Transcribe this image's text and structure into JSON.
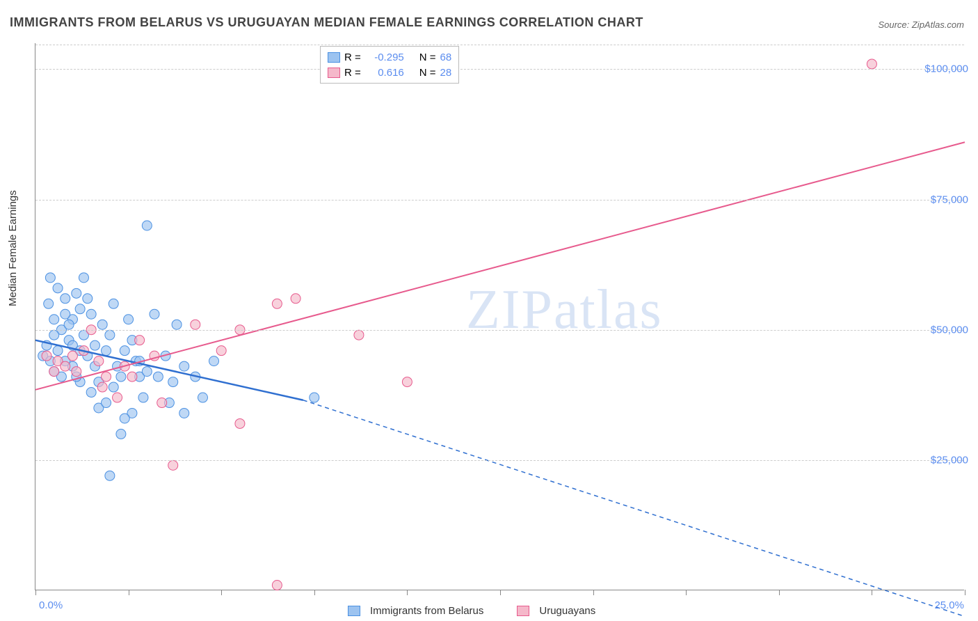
{
  "title": "IMMIGRANTS FROM BELARUS VS URUGUAYAN MEDIAN FEMALE EARNINGS CORRELATION CHART",
  "source_prefix": "Source: ",
  "source": "ZipAtlas.com",
  "y_axis_label": "Median Female Earnings",
  "watermark_a": "ZIP",
  "watermark_b": "atlas",
  "chart": {
    "type": "scatter-with-regression",
    "background_color": "#ffffff",
    "grid_color": "#cccccc",
    "axis_color": "#888888",
    "text_color": "#333333",
    "value_color": "#5b8def",
    "x": {
      "min": 0,
      "max": 25,
      "label_min": "0.0%",
      "label_max": "25.0%",
      "ticks": [
        0,
        2.5,
        5,
        7.5,
        10,
        12.5,
        15,
        17.5,
        20,
        22.5,
        25
      ]
    },
    "y": {
      "min": 0,
      "max": 105000,
      "ticks": [
        25000,
        50000,
        75000,
        100000
      ],
      "tick_labels": [
        "$25,000",
        "$50,000",
        "$75,000",
        "$100,000"
      ]
    },
    "series": [
      {
        "id": "belarus",
        "name": "Immigrants from Belarus",
        "color_fill": "#9cc3f0",
        "color_stroke": "#4a90e2",
        "line_color": "#2f6fd0",
        "r_label": "R =",
        "r_value": "-0.295",
        "n_label": "N =",
        "n_value": "68",
        "marker_radius": 7,
        "marker_opacity": 0.65,
        "regression": {
          "x1": 0,
          "y1": 48000,
          "x2": 7.2,
          "y2": 36500,
          "dash_x2": 25,
          "dash_y2": -5000
        },
        "points": [
          [
            0.2,
            45000
          ],
          [
            0.3,
            47000
          ],
          [
            0.4,
            44000
          ],
          [
            0.35,
            55000
          ],
          [
            0.5,
            52000
          ],
          [
            0.6,
            58000
          ],
          [
            0.5,
            42000
          ],
          [
            0.7,
            50000
          ],
          [
            0.8,
            56000
          ],
          [
            0.9,
            48000
          ],
          [
            1.0,
            43000
          ],
          [
            1.0,
            52000
          ],
          [
            1.1,
            57000
          ],
          [
            1.2,
            40000
          ],
          [
            1.2,
            54000
          ],
          [
            1.3,
            60000
          ],
          [
            1.4,
            45000
          ],
          [
            1.5,
            38000
          ],
          [
            1.5,
            53000
          ],
          [
            1.6,
            47000
          ],
          [
            1.7,
            35000
          ],
          [
            1.8,
            51000
          ],
          [
            1.9,
            36000
          ],
          [
            2.0,
            49000
          ],
          [
            2.0,
            22000
          ],
          [
            2.1,
            55000
          ],
          [
            2.2,
            43000
          ],
          [
            2.3,
            41000
          ],
          [
            2.3,
            30000
          ],
          [
            2.4,
            46000
          ],
          [
            2.5,
            52000
          ],
          [
            2.6,
            34000
          ],
          [
            2.7,
            44000
          ],
          [
            2.8,
            41000
          ],
          [
            2.9,
            37000
          ],
          [
            3.0,
            70000
          ],
          [
            3.0,
            42000
          ],
          [
            3.2,
            53000
          ],
          [
            3.5,
            45000
          ],
          [
            3.7,
            40000
          ],
          [
            3.8,
            51000
          ],
          [
            4.0,
            34000
          ],
          [
            4.0,
            43000
          ],
          [
            4.3,
            41000
          ],
          [
            4.5,
            37000
          ],
          [
            4.8,
            44000
          ],
          [
            0.4,
            60000
          ],
          [
            0.6,
            46000
          ],
          [
            0.7,
            41000
          ],
          [
            0.8,
            44000
          ],
          [
            0.9,
            51000
          ],
          [
            1.0,
            47000
          ],
          [
            1.1,
            41000
          ],
          [
            1.3,
            49000
          ],
          [
            1.4,
            56000
          ],
          [
            1.6,
            43000
          ],
          [
            1.7,
            40000
          ],
          [
            1.9,
            46000
          ],
          [
            2.1,
            39000
          ],
          [
            2.4,
            33000
          ],
          [
            2.6,
            48000
          ],
          [
            2.8,
            44000
          ],
          [
            3.3,
            41000
          ],
          [
            3.6,
            36000
          ],
          [
            0.5,
            49000
          ],
          [
            0.8,
            53000
          ],
          [
            1.2,
            46000
          ],
          [
            7.5,
            37000
          ]
        ]
      },
      {
        "id": "uruguay",
        "name": "Uruguayans",
        "color_fill": "#f5b8ca",
        "color_stroke": "#e75a8d",
        "line_color": "#e75a8d",
        "r_label": "R =",
        "r_value": "0.616",
        "n_label": "N =",
        "n_value": "28",
        "marker_radius": 7,
        "marker_opacity": 0.65,
        "regression": {
          "x1": 0,
          "y1": 38500,
          "x2": 25,
          "y2": 86000
        },
        "points": [
          [
            0.3,
            45000
          ],
          [
            0.5,
            42000
          ],
          [
            0.6,
            44000
          ],
          [
            0.8,
            43000
          ],
          [
            1.0,
            45000
          ],
          [
            1.1,
            42000
          ],
          [
            1.3,
            46000
          ],
          [
            1.5,
            50000
          ],
          [
            1.7,
            44000
          ],
          [
            1.9,
            41000
          ],
          [
            2.2,
            37000
          ],
          [
            2.4,
            43000
          ],
          [
            2.8,
            48000
          ],
          [
            3.2,
            45000
          ],
          [
            3.4,
            36000
          ],
          [
            3.7,
            24000
          ],
          [
            4.3,
            51000
          ],
          [
            5.0,
            46000
          ],
          [
            5.5,
            50000
          ],
          [
            5.5,
            32000
          ],
          [
            6.5,
            55000
          ],
          [
            6.5,
            1000
          ],
          [
            7.0,
            56000
          ],
          [
            8.7,
            49000
          ],
          [
            10.0,
            40000
          ],
          [
            22.5,
            101000
          ],
          [
            1.8,
            39000
          ],
          [
            2.6,
            41000
          ]
        ]
      }
    ]
  },
  "legend_bottom": {
    "items": [
      {
        "ref": 0
      },
      {
        "ref": 1
      }
    ]
  }
}
